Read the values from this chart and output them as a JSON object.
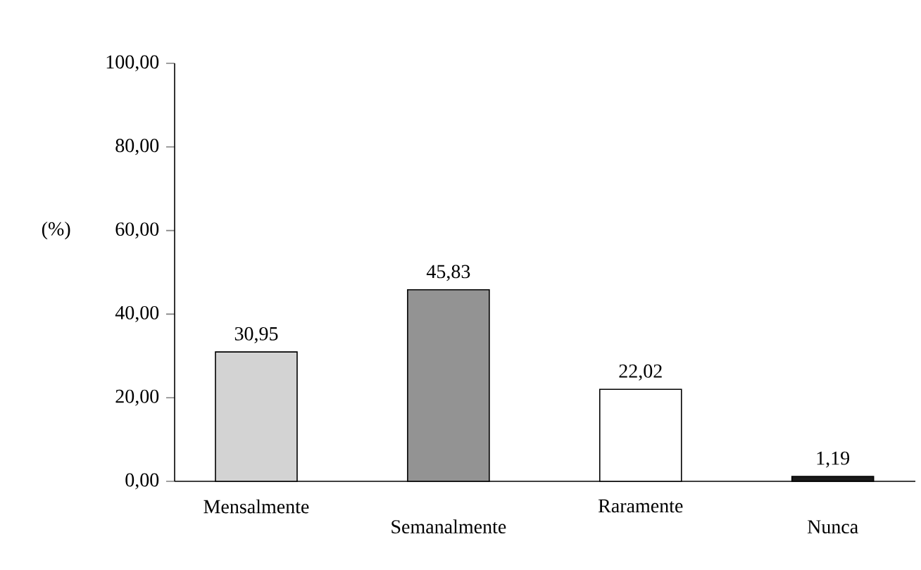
{
  "chart_data": {
    "type": "bar",
    "ylabel": "(%)",
    "categories": [
      "Mensalmente",
      "Semanalmente",
      "Raramente",
      "Nunca"
    ],
    "values": [
      30.95,
      45.83,
      22.02,
      1.19
    ],
    "colors": [
      "#d3d3d3",
      "#939393",
      "#ffffff",
      "#1a1a1a"
    ],
    "value_labels": [
      "30,95",
      "45,83",
      "22,02",
      "1,19"
    ],
    "ylim": [
      0,
      100
    ],
    "yticks": [
      {
        "value": 0,
        "label": "0,00"
      },
      {
        "value": 20,
        "label": "20,00"
      },
      {
        "value": 40,
        "label": "40,00"
      },
      {
        "value": 60,
        "label": "60,00"
      },
      {
        "value": 80,
        "label": "80,00"
      },
      {
        "value": 100,
        "label": "100,00"
      }
    ],
    "grid": false
  }
}
